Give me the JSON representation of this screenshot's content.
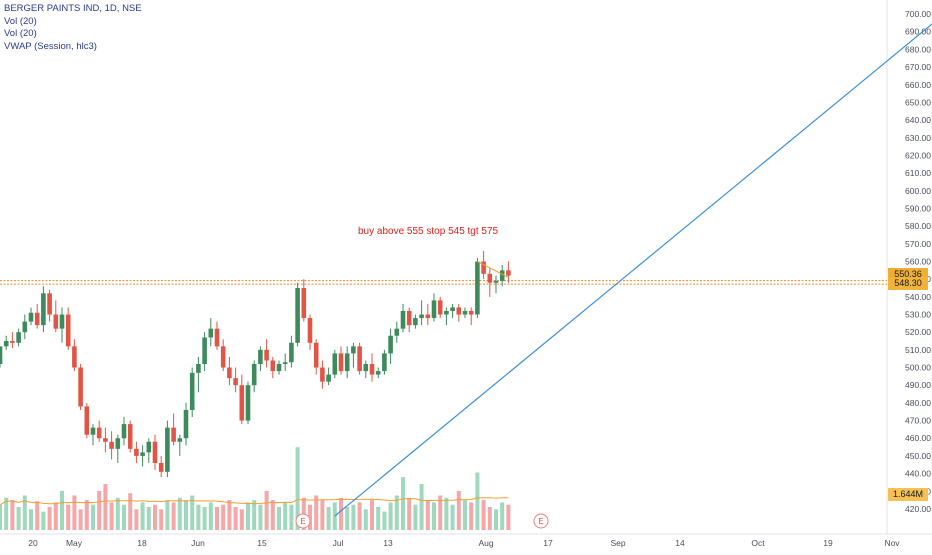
{
  "header": {
    "symbol_line": "BERGER PAINTS IND, 1D, NSE",
    "indicators": [
      "Vol (20)",
      "Vol (20)",
      "VWAP (Session, hlc3)"
    ]
  },
  "annotation": {
    "text": "buy above 555 stop 545 tgt 575"
  },
  "price_axis": {
    "ticks": [
      "700.00",
      "690.00",
      "680.00",
      "670.00",
      "660.00",
      "650.00",
      "640.00",
      "630.00",
      "620.00",
      "610.00",
      "600.00",
      "590.00",
      "580.00",
      "570.00",
      "560.00",
      "550.00",
      "540.00",
      "530.00",
      "520.00",
      "510.00",
      "500.00",
      "490.00",
      "480.00",
      "470.00",
      "460.00",
      "450.00",
      "440.00",
      "430.00",
      "420.00"
    ],
    "min": 416,
    "max": 704
  },
  "time_axis": {
    "ticks": [
      "20",
      "May",
      "18",
      "Jun",
      "15",
      "Jul",
      "13",
      "Aug",
      "17",
      "Sep",
      "14",
      "Oct",
      "19",
      "Nov"
    ]
  },
  "badges": {
    "vwap": "550.36",
    "price": "548.30",
    "volume": "1.644M"
  },
  "earnings": {
    "label": "E"
  },
  "horizontal_levels": [
    549.2,
    547.2
  ],
  "trendline": {
    "from": {
      "bar": 54,
      "price": 416
    },
    "to": {
      "bar": 154,
      "price": 705
    }
  },
  "colors": {
    "up": "#26a69a",
    "down": "#ef5350",
    "up_body": "#3d8b5c",
    "down_body": "#e05545",
    "vol_up": "#9fd8bd",
    "vol_down": "#f3a7a7",
    "level": "#e58e2b",
    "trendline": "#3d8fd6",
    "vwap": "#f0a030"
  },
  "chart_data": {
    "type": "candlestick",
    "title": "BERGER PAINTS IND, 1D, NSE",
    "x_axis": "date (daily bars, Apr–Aug)",
    "y_axis": "price",
    "ylim": [
      416,
      704
    ],
    "ohlc": [
      [
        502,
        512,
        500,
        512
      ],
      [
        512,
        518,
        510,
        515
      ],
      [
        515,
        520,
        511,
        514
      ],
      [
        514,
        522,
        512,
        520
      ],
      [
        520,
        530,
        516,
        526
      ],
      [
        526,
        534,
        524,
        531
      ],
      [
        531,
        536,
        522,
        524
      ],
      [
        524,
        546,
        520,
        542
      ],
      [
        542,
        544,
        526,
        530
      ],
      [
        530,
        538,
        520,
        522
      ],
      [
        522,
        534,
        514,
        530
      ],
      [
        530,
        534,
        510,
        512
      ],
      [
        512,
        516,
        498,
        500
      ],
      [
        500,
        502,
        476,
        478
      ],
      [
        478,
        480,
        460,
        462
      ],
      [
        462,
        468,
        456,
        466
      ],
      [
        466,
        470,
        458,
        460
      ],
      [
        460,
        466,
        452,
        458
      ],
      [
        458,
        464,
        448,
        454
      ],
      [
        454,
        462,
        446,
        460
      ],
      [
        460,
        472,
        456,
        468
      ],
      [
        468,
        470,
        452,
        454
      ],
      [
        454,
        458,
        446,
        450
      ],
      [
        450,
        456,
        444,
        452
      ],
      [
        452,
        460,
        446,
        458
      ],
      [
        458,
        462,
        442,
        446
      ],
      [
        446,
        450,
        438,
        441
      ],
      [
        441,
        470,
        438,
        466
      ],
      [
        466,
        474,
        456,
        458
      ],
      [
        458,
        462,
        450,
        460
      ],
      [
        460,
        480,
        456,
        476
      ],
      [
        476,
        500,
        472,
        497
      ],
      [
        497,
        506,
        486,
        502
      ],
      [
        502,
        520,
        498,
        517
      ],
      [
        517,
        528,
        512,
        522
      ],
      [
        522,
        526,
        510,
        512
      ],
      [
        512,
        516,
        498,
        500
      ],
      [
        500,
        506,
        490,
        494
      ],
      [
        494,
        500,
        486,
        490
      ],
      [
        490,
        496,
        468,
        470
      ],
      [
        470,
        492,
        468,
        490
      ],
      [
        490,
        504,
        486,
        502
      ],
      [
        502,
        512,
        498,
        510
      ],
      [
        510,
        516,
        500,
        504
      ],
      [
        504,
        506,
        494,
        498
      ],
      [
        498,
        504,
        496,
        502
      ],
      [
        502,
        508,
        498,
        503
      ],
      [
        503,
        518,
        500,
        514
      ],
      [
        514,
        548,
        512,
        545
      ],
      [
        545,
        550,
        526,
        528
      ],
      [
        528,
        530,
        510,
        514
      ],
      [
        514,
        516,
        496,
        500
      ],
      [
        500,
        504,
        488,
        492
      ],
      [
        492,
        500,
        490,
        496
      ],
      [
        496,
        510,
        494,
        508
      ],
      [
        508,
        512,
        496,
        498
      ],
      [
        498,
        512,
        494,
        508
      ],
      [
        508,
        514,
        500,
        512
      ],
      [
        512,
        514,
        496,
        498
      ],
      [
        498,
        504,
        494,
        502
      ],
      [
        502,
        508,
        492,
        496
      ],
      [
        496,
        500,
        494,
        498
      ],
      [
        498,
        510,
        496,
        508
      ],
      [
        508,
        522,
        502,
        518
      ],
      [
        518,
        526,
        514,
        522
      ],
      [
        522,
        536,
        520,
        532
      ],
      [
        532,
        534,
        520,
        524
      ],
      [
        524,
        530,
        522,
        528
      ],
      [
        528,
        538,
        524,
        530
      ],
      [
        530,
        536,
        524,
        528
      ],
      [
        528,
        542,
        526,
        538
      ],
      [
        538,
        540,
        528,
        530
      ],
      [
        530,
        534,
        524,
        532
      ],
      [
        532,
        536,
        528,
        534
      ],
      [
        534,
        536,
        526,
        530
      ],
      [
        530,
        534,
        528,
        532
      ],
      [
        532,
        534,
        524,
        530
      ],
      [
        530,
        562,
        528,
        560
      ],
      [
        560,
        566,
        550,
        553
      ],
      [
        553,
        556,
        540,
        548
      ],
      [
        548,
        552,
        542,
        549
      ],
      [
        549,
        558,
        546,
        555
      ],
      [
        555,
        560,
        548,
        552
      ]
    ],
    "volume": [
      22,
      28,
      26,
      20,
      30,
      18,
      25,
      16,
      20,
      24,
      34,
      22,
      30,
      18,
      26,
      22,
      34,
      40,
      24,
      28,
      22,
      32,
      18,
      24,
      20,
      22,
      18,
      26,
      24,
      28,
      26,
      30,
      22,
      20,
      24,
      20,
      22,
      26,
      20,
      18,
      24,
      26,
      22,
      34,
      26,
      20,
      24,
      22,
      72,
      28,
      22,
      30,
      26,
      20,
      24,
      28,
      20,
      22,
      24,
      18,
      26,
      20,
      16,
      24,
      30,
      46,
      28,
      22,
      40,
      26,
      24,
      30,
      28,
      22,
      34,
      26,
      24,
      50,
      26,
      20,
      18,
      24,
      22
    ],
    "volume_max": 80
  }
}
